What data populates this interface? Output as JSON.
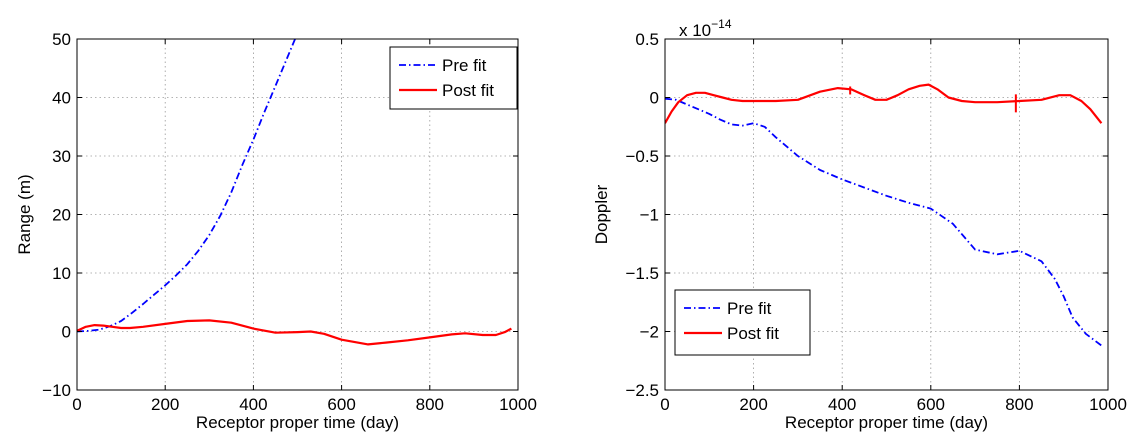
{
  "chart_data": [
    {
      "type": "line",
      "xlabel": "Receptor proper time (day)",
      "ylabel": "Range (m)",
      "xlim": [
        0,
        1000
      ],
      "ylim": [
        -10,
        50
      ],
      "xticks": [
        0,
        200,
        400,
        600,
        800,
        1000
      ],
      "yticks": [
        -10,
        0,
        10,
        20,
        30,
        40,
        50
      ],
      "xtick_labels": [
        "0",
        "200",
        "400",
        "600",
        "800",
        "1000"
      ],
      "ytick_labels": [
        "−10",
        "0",
        "10",
        "20",
        "30",
        "40",
        "50"
      ],
      "grid": true,
      "legend": "top-right",
      "series": [
        {
          "name": "Pre fit",
          "color": "#0000ff",
          "style": "dash-dot",
          "x": [
            0,
            25,
            50,
            75,
            100,
            125,
            150,
            175,
            200,
            225,
            250,
            275,
            300,
            325,
            350,
            375,
            400,
            425,
            450,
            475,
            500
          ],
          "y": [
            0,
            0.1,
            0.3,
            0.9,
            1.8,
            3.2,
            4.7,
            6.3,
            7.9,
            9.6,
            11.5,
            13.8,
            16.5,
            19.8,
            23.8,
            28.5,
            32.8,
            37.5,
            42.0,
            46.5,
            51.0
          ]
        },
        {
          "name": "Post fit",
          "color": "#ff0000",
          "style": "solid",
          "x": [
            0,
            20,
            40,
            60,
            80,
            100,
            120,
            150,
            200,
            250,
            300,
            350,
            400,
            450,
            500,
            530,
            560,
            600,
            660,
            700,
            750,
            800,
            850,
            880,
            920,
            950,
            970,
            985
          ],
          "y": [
            0.1,
            0.8,
            1.1,
            1.0,
            0.8,
            0.6,
            0.6,
            0.8,
            1.3,
            1.8,
            1.9,
            1.5,
            0.5,
            -0.2,
            -0.1,
            0.0,
            -0.4,
            -1.4,
            -2.2,
            -1.9,
            -1.5,
            -1.0,
            -0.5,
            -0.3,
            -0.6,
            -0.6,
            -0.1,
            0.5
          ]
        }
      ]
    },
    {
      "type": "line",
      "xlabel": "Receptor proper time (day)",
      "ylabel": "Doppler",
      "scale_exponent": "x 10",
      "scale_power": "−14",
      "xlim": [
        0,
        1000
      ],
      "ylim": [
        -2.5,
        0.5
      ],
      "xticks": [
        0,
        200,
        400,
        600,
        800,
        1000
      ],
      "yticks": [
        -2.5,
        -2,
        -1.5,
        -1,
        -0.5,
        0,
        0.5
      ],
      "xtick_labels": [
        "0",
        "200",
        "400",
        "600",
        "800",
        "1000"
      ],
      "ytick_labels": [
        "−2.5",
        "−2",
        "−1.5",
        "−1",
        "−0.5",
        "0",
        "0.5"
      ],
      "grid": true,
      "legend": "bottom-left",
      "series": [
        {
          "name": "Pre fit",
          "color": "#0000ff",
          "style": "dash-dot",
          "x": [
            0,
            25,
            50,
            75,
            100,
            125,
            150,
            175,
            200,
            225,
            250,
            300,
            350,
            400,
            450,
            500,
            550,
            600,
            650,
            700,
            750,
            800,
            850,
            880,
            900,
            920,
            950,
            985
          ],
          "y": [
            -0.01,
            -0.02,
            -0.06,
            -0.1,
            -0.14,
            -0.19,
            -0.23,
            -0.24,
            -0.22,
            -0.25,
            -0.34,
            -0.5,
            -0.62,
            -0.7,
            -0.77,
            -0.84,
            -0.9,
            -0.95,
            -1.08,
            -1.3,
            -1.34,
            -1.31,
            -1.4,
            -1.55,
            -1.7,
            -1.88,
            -2.02,
            -2.12
          ]
        },
        {
          "name": "Post fit",
          "color": "#ff0000",
          "style": "solid",
          "x": [
            0,
            15,
            30,
            50,
            70,
            90,
            110,
            130,
            150,
            175,
            200,
            250,
            300,
            350,
            390,
            420,
            450,
            475,
            500,
            525,
            550,
            575,
            595,
            615,
            640,
            670,
            700,
            750,
            800,
            850,
            890,
            915,
            940,
            960,
            985
          ],
          "y": [
            -0.22,
            -0.12,
            -0.04,
            0.02,
            0.04,
            0.04,
            0.02,
            0.0,
            -0.02,
            -0.03,
            -0.03,
            -0.03,
            -0.02,
            0.05,
            0.08,
            0.07,
            0.02,
            -0.02,
            -0.02,
            0.02,
            0.07,
            0.1,
            0.11,
            0.07,
            0.0,
            -0.03,
            -0.04,
            -0.04,
            -0.03,
            -0.02,
            0.02,
            0.02,
            -0.03,
            -0.1,
            -0.22
          ]
        }
      ]
    }
  ]
}
